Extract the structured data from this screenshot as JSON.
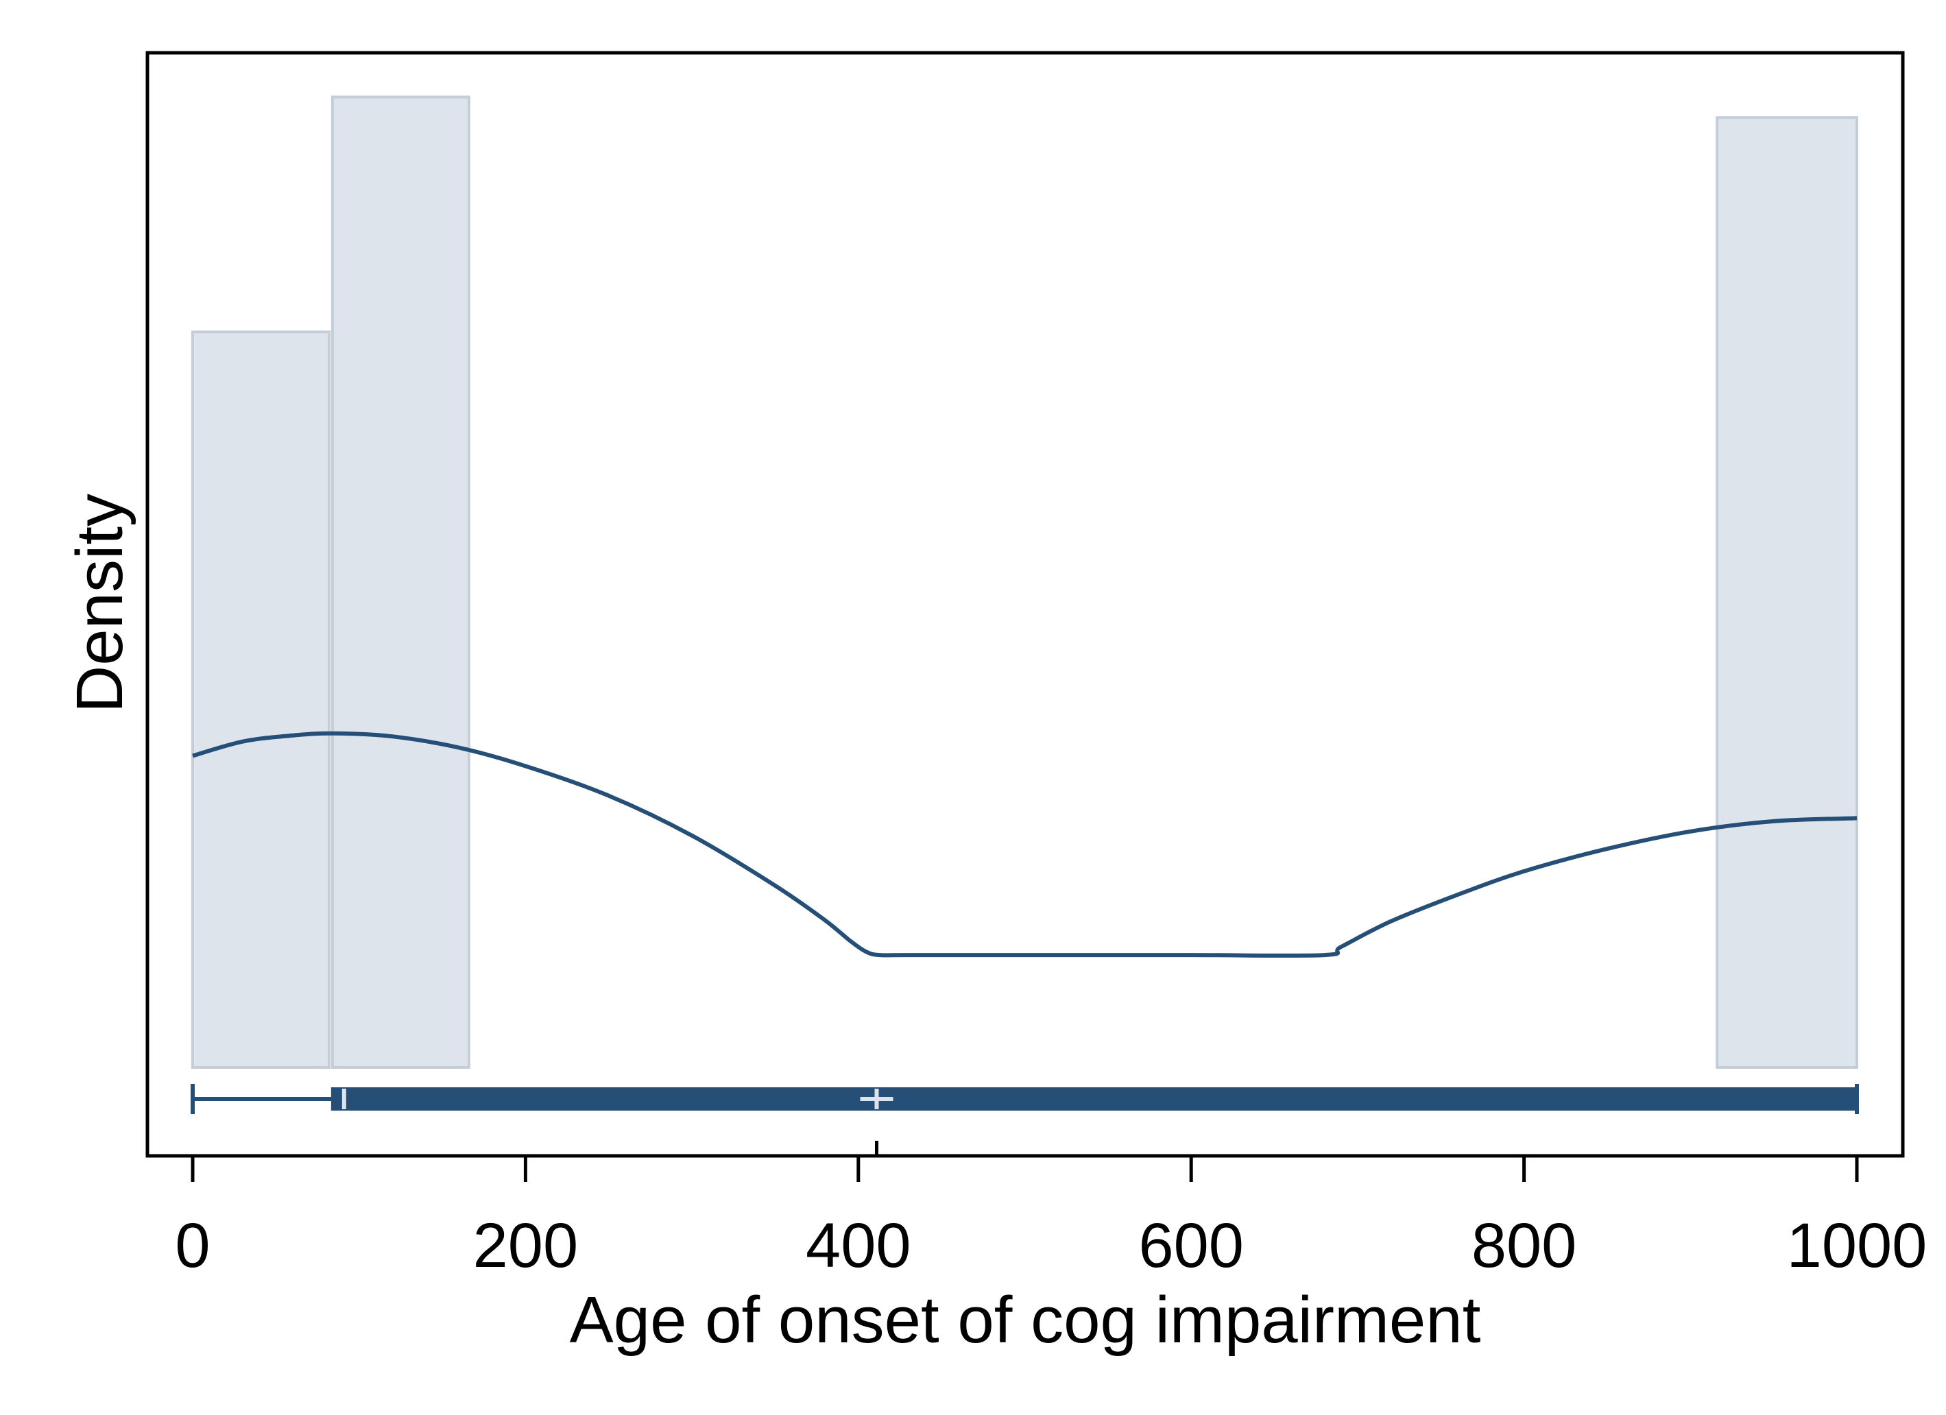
{
  "chart_data": {
    "type": "histogram",
    "xlabel": "Age of onset of cog impairment",
    "ylabel": "Density",
    "xlim": [
      -28,
      1028
    ],
    "xticks": [
      0,
      200,
      400,
      600,
      800,
      1000
    ],
    "xtick_labels": [
      "0",
      "200",
      "400",
      "600",
      "800",
      "1000"
    ],
    "y_tick_labels_shown": false,
    "grid": false,
    "histogram": {
      "bins": [
        {
          "x0": 0,
          "x1": 82,
          "density": 0.72
        },
        {
          "x0": 84,
          "x1": 166,
          "density": 0.95
        },
        {
          "x0": 916,
          "x1": 1000,
          "density": 0.93
        }
      ],
      "fill": "#dde4eb",
      "stroke": "#c3ced8"
    },
    "density_curve": {
      "color": "#254f77",
      "points": [
        [
          0,
          0.305
        ],
        [
          30,
          0.319
        ],
        [
          60,
          0.325
        ],
        [
          85,
          0.327
        ],
        [
          120,
          0.324
        ],
        [
          160,
          0.313
        ],
        [
          200,
          0.295
        ],
        [
          250,
          0.266
        ],
        [
          300,
          0.227
        ],
        [
          350,
          0.178
        ],
        [
          380,
          0.144
        ],
        [
          395,
          0.124
        ],
        [
          405,
          0.113
        ],
        [
          413,
          0.11
        ],
        [
          430,
          0.11
        ],
        [
          500,
          0.11
        ],
        [
          600,
          0.11
        ],
        [
          680,
          0.11
        ],
        [
          690,
          0.118
        ],
        [
          720,
          0.143
        ],
        [
          760,
          0.169
        ],
        [
          800,
          0.192
        ],
        [
          850,
          0.214
        ],
        [
          900,
          0.231
        ],
        [
          950,
          0.241
        ],
        [
          1000,
          0.244
        ]
      ]
    },
    "box_plot": {
      "min": 0,
      "q1": 84,
      "median": 91,
      "mean": 411,
      "q3": 1000,
      "max": 1000,
      "color": "#254f77",
      "marker_color": "#dde4eb"
    }
  }
}
